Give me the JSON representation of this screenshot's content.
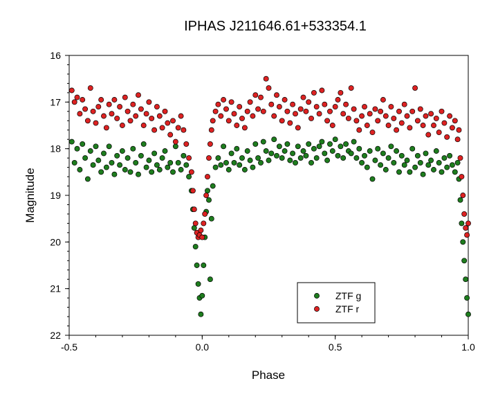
{
  "chart_data": {
    "type": "scatter",
    "title": "IPHAS J211646.61+533354.1",
    "xlabel": "Phase",
    "ylabel": "Magnitude",
    "xlim": [
      -0.5,
      1.0
    ],
    "ylim": [
      16,
      22
    ],
    "y_inverted": true,
    "grid": false,
    "legend_position": "lower-right",
    "x_ticks": [
      -0.5,
      0.0,
      0.5,
      1.0
    ],
    "x_tick_labels": [
      "-0.5",
      "0.0",
      "0.5",
      "1.0"
    ],
    "y_ticks": [
      16,
      17,
      18,
      19,
      20,
      21,
      22
    ],
    "y_tick_labels": [
      "16",
      "17",
      "18",
      "19",
      "20",
      "21",
      "22"
    ],
    "series": [
      {
        "name": "ZTF g",
        "color": "#1e7d1e",
        "x": [
          -0.49,
          -0.48,
          -0.47,
          -0.46,
          -0.45,
          -0.44,
          -0.43,
          -0.42,
          -0.41,
          -0.4,
          -0.39,
          -0.38,
          -0.37,
          -0.36,
          -0.35,
          -0.34,
          -0.33,
          -0.32,
          -0.31,
          -0.3,
          -0.29,
          -0.28,
          -0.27,
          -0.26,
          -0.25,
          -0.24,
          -0.23,
          -0.22,
          -0.21,
          -0.2,
          -0.19,
          -0.18,
          -0.17,
          -0.16,
          -0.15,
          -0.14,
          -0.13,
          -0.12,
          -0.11,
          -0.1,
          -0.09,
          -0.08,
          -0.07,
          -0.06,
          -0.05,
          -0.04,
          -0.035,
          -0.03,
          -0.025,
          -0.02,
          -0.015,
          -0.01,
          -0.005,
          0.0,
          0.005,
          0.01,
          0.015,
          0.02,
          0.025,
          0.03,
          0.035,
          0.04,
          0.05,
          0.06,
          0.07,
          0.08,
          0.09,
          0.1,
          0.11,
          0.12,
          0.13,
          0.14,
          0.15,
          0.16,
          0.17,
          0.18,
          0.19,
          0.2,
          0.21,
          0.22,
          0.23,
          0.24,
          0.25,
          0.26,
          0.27,
          0.28,
          0.29,
          0.3,
          0.31,
          0.32,
          0.33,
          0.34,
          0.35,
          0.36,
          0.37,
          0.38,
          0.39,
          0.4,
          0.41,
          0.42,
          0.43,
          0.44,
          0.45,
          0.46,
          0.47,
          0.48,
          0.49,
          0.5,
          0.51,
          0.52,
          0.53,
          0.54,
          0.55,
          0.56,
          0.57,
          0.58,
          0.59,
          0.6,
          0.61,
          0.62,
          0.63,
          0.64,
          0.65,
          0.66,
          0.67,
          0.68,
          0.69,
          0.7,
          0.71,
          0.72,
          0.73,
          0.74,
          0.75,
          0.76,
          0.77,
          0.78,
          0.79,
          0.8,
          0.81,
          0.82,
          0.83,
          0.84,
          0.85,
          0.86,
          0.87,
          0.88,
          0.89,
          0.9,
          0.91,
          0.92,
          0.93,
          0.94,
          0.95,
          0.96,
          0.965,
          0.97,
          0.975,
          0.98,
          0.985,
          0.99,
          0.995,
          1.0
        ],
        "y": [
          17.85,
          18.3,
          18.0,
          18.45,
          17.9,
          18.2,
          18.65,
          18.05,
          18.35,
          17.95,
          18.25,
          18.5,
          18.1,
          18.4,
          17.95,
          18.3,
          18.55,
          18.15,
          18.35,
          18.05,
          18.45,
          18.2,
          18.5,
          18.0,
          18.3,
          18.55,
          18.15,
          17.9,
          18.4,
          18.25,
          18.5,
          18.1,
          18.35,
          18.45,
          18.2,
          18.05,
          18.4,
          18.3,
          18.5,
          17.95,
          18.3,
          18.45,
          18.15,
          18.35,
          18.6,
          18.9,
          19.3,
          19.7,
          20.1,
          20.5,
          20.9,
          21.2,
          21.55,
          21.15,
          20.5,
          19.9,
          19.35,
          18.9,
          19.1,
          20.8,
          19.5,
          18.8,
          18.4,
          18.2,
          18.35,
          17.95,
          18.3,
          18.45,
          18.1,
          18.3,
          18.0,
          18.35,
          18.2,
          18.45,
          18.05,
          18.25,
          18.4,
          17.9,
          18.2,
          18.3,
          17.85,
          18.05,
          18.25,
          18.1,
          17.8,
          18.15,
          17.95,
          18.2,
          18.05,
          17.9,
          18.25,
          18.1,
          18.3,
          17.95,
          18.2,
          18.05,
          18.15,
          17.9,
          18.3,
          18.0,
          18.2,
          17.95,
          17.85,
          18.1,
          18.25,
          17.9,
          18.05,
          17.8,
          18.15,
          17.95,
          18.2,
          17.9,
          18.05,
          18.1,
          17.85,
          18.2,
          18.0,
          18.3,
          18.15,
          18.4,
          18.05,
          18.65,
          18.25,
          18.0,
          18.35,
          18.1,
          18.45,
          18.2,
          17.95,
          18.3,
          18.05,
          18.5,
          18.15,
          18.35,
          18.25,
          18.5,
          18.0,
          18.4,
          18.15,
          18.3,
          18.55,
          18.1,
          18.35,
          18.25,
          18.45,
          18.05,
          18.3,
          18.5,
          18.2,
          18.4,
          18.15,
          18.35,
          18.5,
          18.3,
          18.65,
          19.1,
          19.6,
          20.0,
          20.4,
          20.8,
          21.2,
          21.55
        ]
      },
      {
        "name": "ZTF r",
        "color": "#dd2222",
        "x": [
          -0.49,
          -0.48,
          -0.47,
          -0.46,
          -0.45,
          -0.44,
          -0.43,
          -0.42,
          -0.41,
          -0.4,
          -0.39,
          -0.38,
          -0.37,
          -0.36,
          -0.35,
          -0.34,
          -0.33,
          -0.32,
          -0.31,
          -0.3,
          -0.29,
          -0.28,
          -0.27,
          -0.26,
          -0.25,
          -0.24,
          -0.23,
          -0.22,
          -0.21,
          -0.2,
          -0.19,
          -0.18,
          -0.17,
          -0.16,
          -0.15,
          -0.14,
          -0.13,
          -0.12,
          -0.11,
          -0.1,
          -0.09,
          -0.08,
          -0.07,
          -0.06,
          -0.05,
          -0.04,
          -0.035,
          -0.03,
          -0.025,
          -0.02,
          -0.015,
          -0.01,
          -0.005,
          0.0,
          0.005,
          0.01,
          0.015,
          0.02,
          0.025,
          0.03,
          0.035,
          0.04,
          0.05,
          0.06,
          0.07,
          0.08,
          0.09,
          0.1,
          0.11,
          0.12,
          0.13,
          0.14,
          0.15,
          0.16,
          0.17,
          0.18,
          0.19,
          0.2,
          0.21,
          0.22,
          0.23,
          0.24,
          0.25,
          0.26,
          0.27,
          0.28,
          0.29,
          0.3,
          0.31,
          0.32,
          0.33,
          0.34,
          0.35,
          0.36,
          0.37,
          0.38,
          0.39,
          0.4,
          0.41,
          0.42,
          0.43,
          0.44,
          0.45,
          0.46,
          0.47,
          0.48,
          0.49,
          0.5,
          0.51,
          0.52,
          0.53,
          0.54,
          0.55,
          0.56,
          0.57,
          0.58,
          0.59,
          0.6,
          0.61,
          0.62,
          0.63,
          0.64,
          0.65,
          0.66,
          0.67,
          0.68,
          0.69,
          0.7,
          0.71,
          0.72,
          0.73,
          0.74,
          0.75,
          0.76,
          0.77,
          0.78,
          0.79,
          0.8,
          0.81,
          0.82,
          0.83,
          0.84,
          0.85,
          0.86,
          0.87,
          0.88,
          0.89,
          0.9,
          0.91,
          0.92,
          0.93,
          0.94,
          0.95,
          0.96,
          0.965,
          0.97,
          0.975,
          0.98,
          0.985,
          0.99,
          0.995,
          1.0
        ],
        "y": [
          16.75,
          17.0,
          16.9,
          17.25,
          16.95,
          17.15,
          17.4,
          16.7,
          17.2,
          17.45,
          17.1,
          16.95,
          17.3,
          17.55,
          17.05,
          17.25,
          16.95,
          17.35,
          17.1,
          17.5,
          16.9,
          17.2,
          17.4,
          17.05,
          17.3,
          16.85,
          17.15,
          17.5,
          17.25,
          17.0,
          17.35,
          17.6,
          17.1,
          17.3,
          17.55,
          17.2,
          17.45,
          17.7,
          17.4,
          17.85,
          17.55,
          17.3,
          17.6,
          17.9,
          18.2,
          18.5,
          18.9,
          19.3,
          19.6,
          19.8,
          19.9,
          19.85,
          19.75,
          19.9,
          19.6,
          19.4,
          19.0,
          18.6,
          18.2,
          17.9,
          17.6,
          17.4,
          17.2,
          17.05,
          17.3,
          16.95,
          17.15,
          17.4,
          17.0,
          17.25,
          17.5,
          17.1,
          17.35,
          17.55,
          17.2,
          17.0,
          17.3,
          16.85,
          17.15,
          16.9,
          17.2,
          16.5,
          16.7,
          17.05,
          17.3,
          16.85,
          17.1,
          17.4,
          16.95,
          17.2,
          17.45,
          17.05,
          17.25,
          17.55,
          17.15,
          16.9,
          17.2,
          17.0,
          17.35,
          16.8,
          17.1,
          17.25,
          16.75,
          17.05,
          17.4,
          17.2,
          17.5,
          17.1,
          16.95,
          16.8,
          17.25,
          17.05,
          17.35,
          16.7,
          17.15,
          17.4,
          17.6,
          17.3,
          17.1,
          17.5,
          17.25,
          17.65,
          17.15,
          17.4,
          17.2,
          16.95,
          17.3,
          17.5,
          17.1,
          17.35,
          17.6,
          17.2,
          17.45,
          17.05,
          17.3,
          17.55,
          17.2,
          16.7,
          17.4,
          17.15,
          17.5,
          17.3,
          17.7,
          17.25,
          17.5,
          17.35,
          17.65,
          17.2,
          17.45,
          17.75,
          17.3,
          17.55,
          17.4,
          17.8,
          17.6,
          18.2,
          18.6,
          19.0,
          19.4,
          19.7,
          19.85,
          19.6
        ]
      }
    ]
  }
}
